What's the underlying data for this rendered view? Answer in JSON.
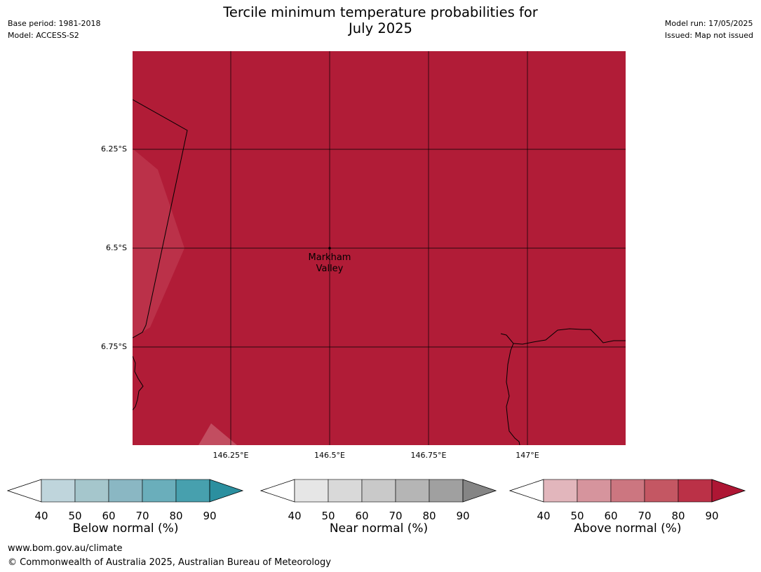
{
  "title_line1": "Tercile minimum temperature probabilities for",
  "title_line2": "July 2025",
  "meta_left": [
    "Base period: 1981-2018",
    "Model: ACCESS-S2"
  ],
  "meta_right": [
    "Model run: 17/05/2025",
    "Issued: Map not issued"
  ],
  "lat_ticks": [
    "6.25°S",
    "6.5°S",
    "6.75°S"
  ],
  "lon_ticks": [
    "146.25°E",
    "146.5°E",
    "146.75°E",
    "147°E"
  ],
  "place_label": [
    "Markham",
    "Valley"
  ],
  "colors": {
    "above_main": "#b11c37",
    "above_light": "#bb3149",
    "above_lighter": "#c24d60",
    "gridline": "#000000",
    "coastline": "#000000"
  },
  "colorbars": [
    {
      "label": "Below normal (%)",
      "ticks": [
        "40",
        "50",
        "60",
        "70",
        "80",
        "90"
      ],
      "low_color": "#ffffff",
      "colors": [
        "#bfd5dc",
        "#a5c6cc",
        "#8ab7c3",
        "#6aaebb",
        "#47a0ae"
      ],
      "high_color": "#2b8f9f"
    },
    {
      "label": "Near normal (%)",
      "ticks": [
        "40",
        "50",
        "60",
        "70",
        "80",
        "90"
      ],
      "low_color": "#ffffff",
      "colors": [
        "#e6e6e6",
        "#d9d9d9",
        "#c9c9c9",
        "#b5b5b5",
        "#a0a0a0"
      ],
      "high_color": "#858585"
    },
    {
      "label": "Above normal (%)",
      "ticks": [
        "40",
        "50",
        "60",
        "70",
        "80",
        "90"
      ],
      "low_color": "#ffffff",
      "colors": [
        "#e2b6bc",
        "#d6949d",
        "#cc7680",
        "#c45763",
        "#bb3147"
      ],
      "high_color": "#ae1634"
    }
  ],
  "footer_line1": "www.bom.gov.au/climate",
  "footer_line2": "© Commonwealth of Australia 2025, Australian Bureau of Meteorology"
}
